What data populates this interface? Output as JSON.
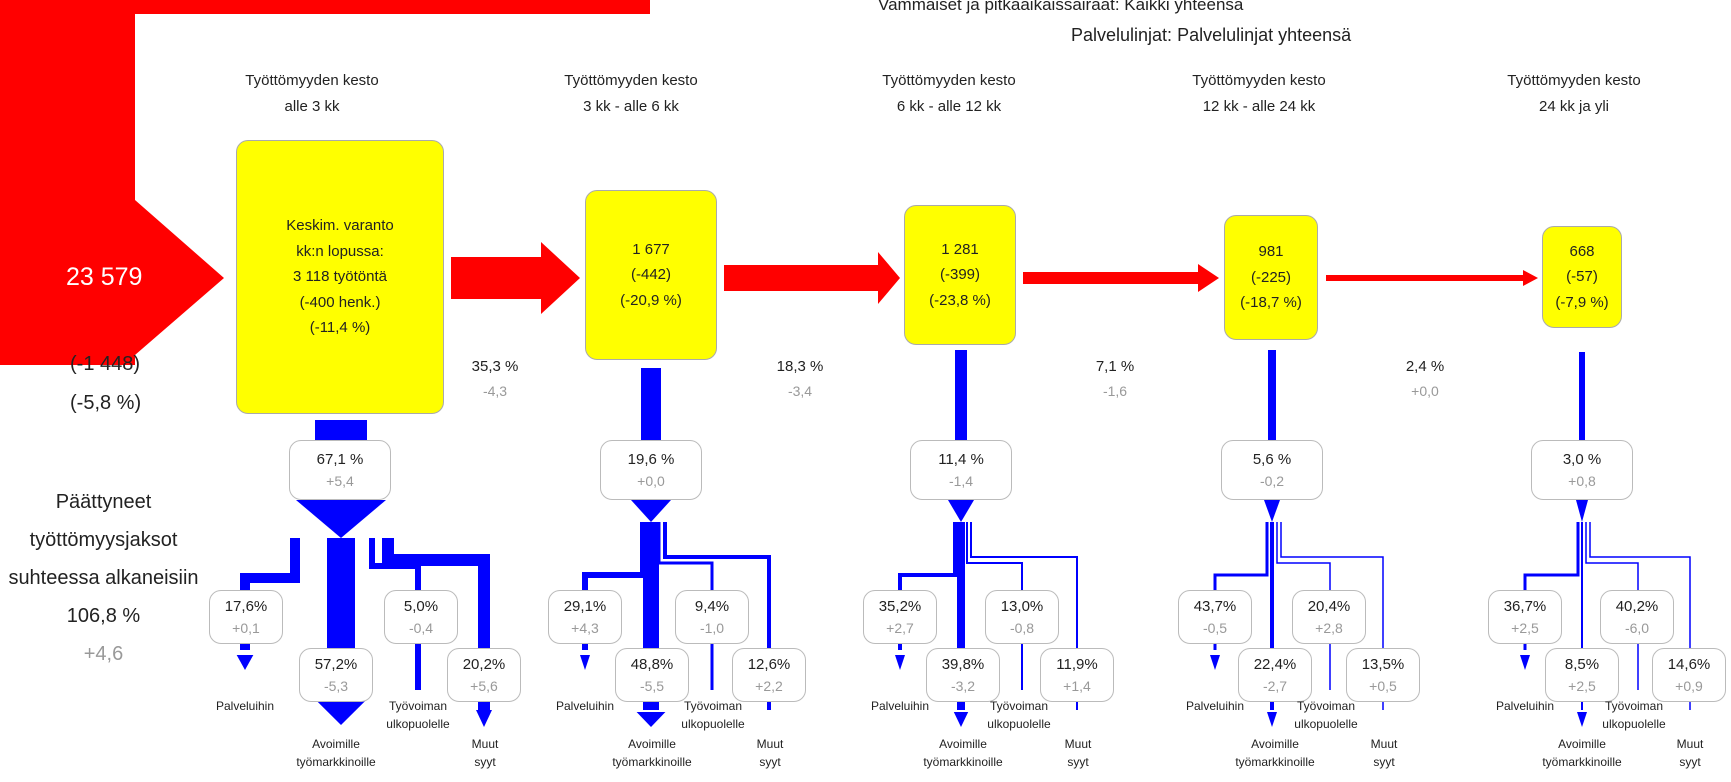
{
  "header": {
    "line1_label": "Vammaiset ja pitkäaikaissairaat:",
    "line1_value": "Kaikki yhteensä",
    "line2_label": "Palvelulinjat:",
    "line2_value": "Palvelulinjat yhteensä"
  },
  "inflow": {
    "value": "23 579",
    "change": "(-1 448)",
    "change_pct": "(-5,8 %)"
  },
  "ended": {
    "line1": "Päättyneet",
    "line2": "työttömyysjaksot",
    "line3": "suhteessa alkaneisiin",
    "value": "106,8 %",
    "change": "+4,6"
  },
  "stages": [
    {
      "title1": "Työttömyyden kesto",
      "title2": "alle 3 kk",
      "box_lines": [
        "Keskim. varanto",
        "kk:n lopussa:",
        "3 118 työtöntä",
        "(-400 henk.)",
        "(-11,4 %)"
      ],
      "exit_pct": "67,1 %",
      "exit_change": "+5,4",
      "dest": {
        "palv_pct": "17,6%",
        "palv_change": "+0,1",
        "avo_pct": "57,2%",
        "avo_change": "-5,3",
        "tyo_pct": "5,0%",
        "tyo_change": "-0,4",
        "muut_pct": "20,2%",
        "muut_change": "+5,6"
      }
    },
    {
      "title1": "Työttömyyden kesto",
      "title2": "3 kk - alle 6 kk",
      "box_lines": [
        "1 677",
        "(-442)",
        "(-20,9 %)"
      ],
      "exit_pct": "19,6 %",
      "exit_change": "+0,0",
      "dest": {
        "palv_pct": "29,1%",
        "palv_change": "+4,3",
        "avo_pct": "48,8%",
        "avo_change": "-5,5",
        "tyo_pct": "9,4%",
        "tyo_change": "-1,0",
        "muut_pct": "12,6%",
        "muut_change": "+2,2"
      }
    },
    {
      "title1": "Työttömyyden kesto",
      "title2": "6 kk - alle 12 kk",
      "box_lines": [
        "1 281",
        "(-399)",
        "(-23,8 %)"
      ],
      "exit_pct": "11,4 %",
      "exit_change": "-1,4",
      "dest": {
        "palv_pct": "35,2%",
        "palv_change": "+2,7",
        "avo_pct": "39,8%",
        "avo_change": "-3,2",
        "tyo_pct": "13,0%",
        "tyo_change": "-0,8",
        "muut_pct": "11,9%",
        "muut_change": "+1,4"
      }
    },
    {
      "title1": "Työttömyyden kesto",
      "title2": "12 kk - alle 24 kk",
      "box_lines": [
        "981",
        "(-225)",
        "(-18,7 %)"
      ],
      "exit_pct": "5,6 %",
      "exit_change": "-0,2",
      "dest": {
        "palv_pct": "43,7%",
        "palv_change": "-0,5",
        "avo_pct": "22,4%",
        "avo_change": "-2,7",
        "tyo_pct": "20,4%",
        "tyo_change": "+2,8",
        "muut_pct": "13,5%",
        "muut_change": "+0,5"
      }
    },
    {
      "title1": "Työttömyyden kesto",
      "title2": "24 kk ja yli",
      "box_lines": [
        "668",
        "(-57)",
        "(-7,9 %)"
      ],
      "exit_pct": "3,0 %",
      "exit_change": "+0,8",
      "dest": {
        "palv_pct": "36,7%",
        "palv_change": "+2,5",
        "avo_pct": "8,5%",
        "avo_change": "+2,5",
        "tyo_pct": "40,2%",
        "tyo_change": "-6,0",
        "muut_pct": "14,6%",
        "muut_change": "+0,9"
      }
    }
  ],
  "transitions": [
    {
      "pct": "35,3 %",
      "change": "-4,3"
    },
    {
      "pct": "18,3 %",
      "change": "-3,4"
    },
    {
      "pct": "7,1 %",
      "change": "-1,6"
    },
    {
      "pct": "2,4 %",
      "change": "+0,0"
    }
  ],
  "dest_labels": {
    "palv": "Palveluihin",
    "avo1": "Avoimille",
    "avo2": "työmarkkinoille",
    "tyo1": "Työvoiman",
    "tyo2": "ulkopuolelle",
    "muut1": "Muut",
    "muut2": "syyt"
  },
  "colors": {
    "flow_red": "#ff0000",
    "exit_blue": "#0000ff",
    "box_yellow": "#ffff00"
  }
}
